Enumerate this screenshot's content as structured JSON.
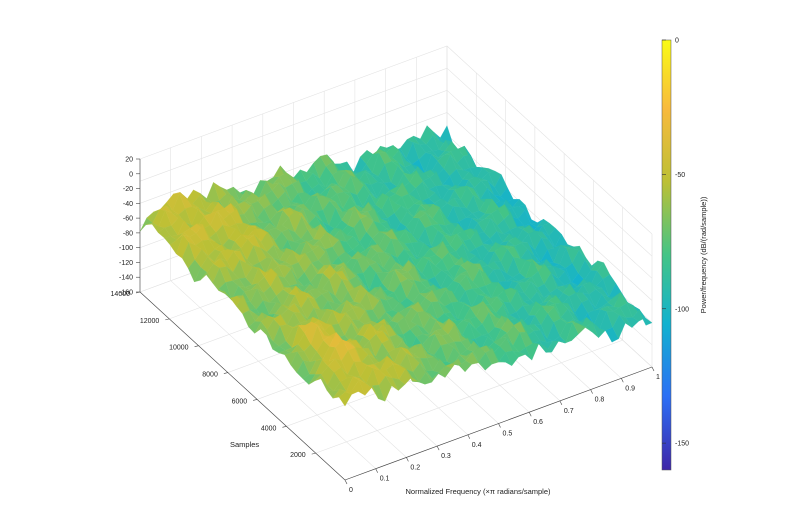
{
  "chart_data": {
    "type": "surface",
    "title": "",
    "xlabel": "Normalized Frequency (×π radians/sample)",
    "ylabel": "Samples",
    "zlabel": "",
    "colorbar_label": "Power/frequency (dB/(rad/sample))",
    "x_ticks": [
      "0",
      "0.1",
      "0.2",
      "0.3",
      "0.4",
      "0.5",
      "0.6",
      "0.7",
      "0.8",
      "0.9",
      "1"
    ],
    "y_ticks": [
      "2000",
      "4000",
      "6000",
      "8000",
      "10000",
      "12000",
      "14000"
    ],
    "z_ticks": [
      "20",
      "0",
      "-20",
      "-40",
      "-60",
      "-80",
      "-100",
      "-120",
      "-140",
      "-160"
    ],
    "colorbar_ticks": [
      "0",
      "-50",
      "-100",
      "-150"
    ],
    "xlim": [
      0,
      1
    ],
    "ylim": [
      0,
      14000
    ],
    "zlim": [
      -160,
      20
    ],
    "colorbar_range": [
      -160,
      0
    ],
    "colormap": [
      "#3e26a8",
      "#2c6ff5",
      "#12b2cf",
      "#44c486",
      "#bcc035",
      "#f8ba3d",
      "#f9fb15"
    ],
    "grid": true,
    "surface_profile": {
      "frequency": [
        0,
        0.05,
        0.1,
        0.15,
        0.2,
        0.3,
        0.4,
        0.5,
        0.6,
        0.7,
        0.8,
        0.9,
        1.0
      ],
      "mean_power_db": [
        -65,
        -58,
        -55,
        -57,
        -60,
        -66,
        -72,
        -76,
        -80,
        -84,
        -88,
        -92,
        -96
      ]
    }
  }
}
